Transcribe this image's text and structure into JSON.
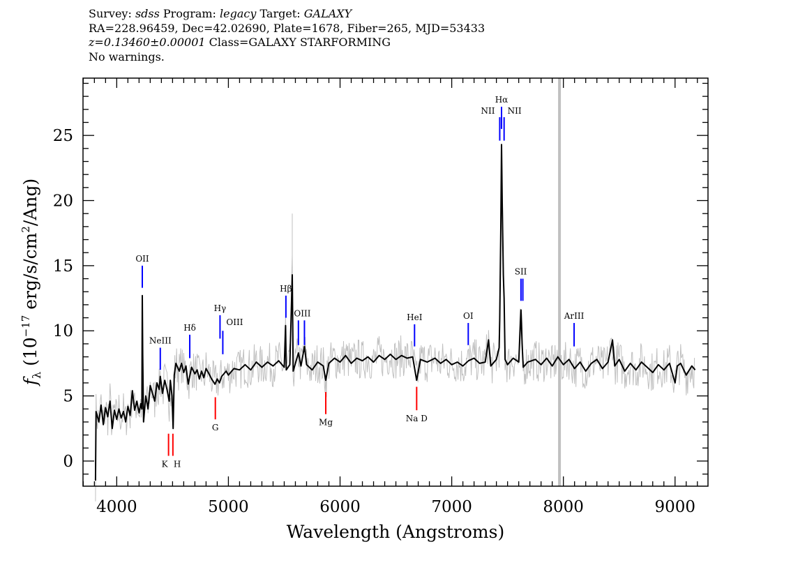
{
  "header": {
    "line1": {
      "survey_label": "Survey: ",
      "survey": "sdss",
      "program_label": " Program: ",
      "program": "legacy",
      "target_label": " Target: ",
      "target": "GALAXY"
    },
    "line2": "RA=228.96459, Dec=42.02690, Plate=1678, Fiber=265, MJD=53433",
    "line3": {
      "redshift": "z=0.13460±0.00001",
      "class": " Class=GALAXY STARFORMING"
    },
    "line4": "No warnings."
  },
  "chart_data": {
    "type": "line",
    "xlabel": "Wavelength (Angstroms)",
    "ylabel": {
      "f": "f",
      "sub": "λ",
      "pre": " (10",
      "exp": "−17",
      "mid": " erg/s/cm",
      "exp2": "2",
      "post": "/Ang)"
    },
    "xlim": [
      3698,
      9295
    ],
    "ylim": [
      -1.93,
      29.4
    ],
    "x_ticks": [
      4000,
      5000,
      6000,
      7000,
      8000,
      9000
    ],
    "x_tick_labels": [
      "4000",
      "5000",
      "6000",
      "7000",
      "8000",
      "9000"
    ],
    "y_ticks": [
      0,
      5,
      10,
      15,
      20,
      25
    ],
    "y_tick_labels": [
      "0",
      "5",
      "10",
      "15",
      "20",
      "25"
    ],
    "grid": false,
    "colors": {
      "flux": "#000000",
      "error_band": "#c0c0c0",
      "emission": "#0000ff",
      "absorption": "#ff0000"
    },
    "masked_wavelength": 7965,
    "spectrum": [
      [
        3810,
        -1.5
      ],
      [
        3815,
        3.8
      ],
      [
        3840,
        3.0
      ],
      [
        3860,
        4.3
      ],
      [
        3880,
        2.8
      ],
      [
        3900,
        4.1
      ],
      [
        3920,
        3.4
      ],
      [
        3940,
        4.6
      ],
      [
        3960,
        2.5
      ],
      [
        3980,
        3.9
      ],
      [
        4000,
        3.2
      ],
      [
        4020,
        4.0
      ],
      [
        4040,
        3.3
      ],
      [
        4060,
        3.8
      ],
      [
        4080,
        3.0
      ],
      [
        4100,
        4.2
      ],
      [
        4120,
        3.5
      ],
      [
        4140,
        5.4
      ],
      [
        4160,
        3.9
      ],
      [
        4180,
        4.6
      ],
      [
        4200,
        3.7
      ],
      [
        4215,
        4.4
      ],
      [
        4225,
        4.0
      ],
      [
        4229,
        12.7
      ],
      [
        4233,
        8.2
      ],
      [
        4240,
        3.0
      ],
      [
        4260,
        5.0
      ],
      [
        4280,
        4.0
      ],
      [
        4300,
        5.8
      ],
      [
        4320,
        5.2
      ],
      [
        4340,
        4.6
      ],
      [
        4360,
        6.0
      ],
      [
        4380,
        5.5
      ],
      [
        4390,
        6.5
      ],
      [
        4410,
        5.2
      ],
      [
        4430,
        6.2
      ],
      [
        4450,
        5.5
      ],
      [
        4470,
        4.6
      ],
      [
        4480,
        6.2
      ],
      [
        4495,
        5.0
      ],
      [
        4505,
        2.5
      ],
      [
        4515,
        6.6
      ],
      [
        4530,
        7.5
      ],
      [
        4560,
        6.9
      ],
      [
        4580,
        7.5
      ],
      [
        4600,
        6.8
      ],
      [
        4620,
        7.3
      ],
      [
        4640,
        5.9
      ],
      [
        4654,
        6.5
      ],
      [
        4670,
        7.2
      ],
      [
        4700,
        6.7
      ],
      [
        4720,
        7.0
      ],
      [
        4740,
        6.3
      ],
      [
        4760,
        6.9
      ],
      [
        4780,
        6.4
      ],
      [
        4800,
        7.1
      ],
      [
        4820,
        6.8
      ],
      [
        4850,
        6.3
      ],
      [
        4880,
        5.9
      ],
      [
        4900,
        6.3
      ],
      [
        4920,
        6.0
      ],
      [
        4940,
        6.5
      ],
      [
        4960,
        6.7
      ],
      [
        4980,
        6.9
      ],
      [
        5000,
        6.6
      ],
      [
        5050,
        7.1
      ],
      [
        5100,
        7.0
      ],
      [
        5150,
        7.4
      ],
      [
        5200,
        7.0
      ],
      [
        5250,
        7.6
      ],
      [
        5300,
        7.2
      ],
      [
        5350,
        7.6
      ],
      [
        5400,
        7.3
      ],
      [
        5450,
        7.7
      ],
      [
        5500,
        7.2
      ],
      [
        5512,
        10.4
      ],
      [
        5518,
        7.0
      ],
      [
        5550,
        7.4
      ],
      [
        5572,
        14.3
      ],
      [
        5580,
        6.9
      ],
      [
        5627,
        8.3
      ],
      [
        5650,
        7.3
      ],
      [
        5681,
        8.8
      ],
      [
        5700,
        7.4
      ],
      [
        5750,
        7.0
      ],
      [
        5800,
        7.6
      ],
      [
        5850,
        7.3
      ],
      [
        5872,
        6.2
      ],
      [
        5900,
        7.5
      ],
      [
        5950,
        7.9
      ],
      [
        6000,
        7.6
      ],
      [
        6050,
        8.1
      ],
      [
        6100,
        7.5
      ],
      [
        6150,
        7.9
      ],
      [
        6200,
        7.7
      ],
      [
        6250,
        8.0
      ],
      [
        6300,
        7.6
      ],
      [
        6350,
        8.1
      ],
      [
        6400,
        7.8
      ],
      [
        6450,
        8.2
      ],
      [
        6500,
        7.8
      ],
      [
        6550,
        8.1
      ],
      [
        6600,
        7.9
      ],
      [
        6650,
        8.0
      ],
      [
        6686,
        6.2
      ],
      [
        6720,
        7.8
      ],
      [
        6780,
        7.6
      ],
      [
        6850,
        7.9
      ],
      [
        6900,
        7.5
      ],
      [
        6950,
        7.8
      ],
      [
        7000,
        7.4
      ],
      [
        7050,
        7.6
      ],
      [
        7100,
        7.3
      ],
      [
        7150,
        7.7
      ],
      [
        7200,
        7.9
      ],
      [
        7250,
        7.5
      ],
      [
        7300,
        7.6
      ],
      [
        7330,
        9.3
      ],
      [
        7350,
        7.3
      ],
      [
        7400,
        7.8
      ],
      [
        7425,
        8.7
      ],
      [
        7430,
        10.8
      ],
      [
        7440,
        18.0
      ],
      [
        7446,
        24.3
      ],
      [
        7452,
        19.8
      ],
      [
        7462,
        14.3
      ],
      [
        7469,
        12.5
      ],
      [
        7478,
        7.8
      ],
      [
        7500,
        7.4
      ],
      [
        7550,
        7.9
      ],
      [
        7600,
        7.6
      ],
      [
        7620,
        11.6
      ],
      [
        7630,
        9.0
      ],
      [
        7640,
        7.2
      ],
      [
        7680,
        7.6
      ],
      [
        7750,
        7.8
      ],
      [
        7800,
        7.4
      ],
      [
        7850,
        7.9
      ],
      [
        7900,
        7.3
      ],
      [
        7950,
        8.0
      ],
      [
        8000,
        7.4
      ],
      [
        8050,
        7.8
      ],
      [
        8100,
        7.1
      ],
      [
        8150,
        7.6
      ],
      [
        8200,
        6.9
      ],
      [
        8250,
        7.5
      ],
      [
        8300,
        7.8
      ],
      [
        8350,
        7.1
      ],
      [
        8400,
        7.6
      ],
      [
        8440,
        9.3
      ],
      [
        8460,
        7.3
      ],
      [
        8500,
        7.8
      ],
      [
        8550,
        6.9
      ],
      [
        8600,
        7.5
      ],
      [
        8650,
        7.0
      ],
      [
        8700,
        7.6
      ],
      [
        8750,
        7.2
      ],
      [
        8800,
        6.8
      ],
      [
        8850,
        7.4
      ],
      [
        8900,
        7.0
      ],
      [
        8950,
        7.5
      ],
      [
        9000,
        6.0
      ],
      [
        9020,
        7.3
      ],
      [
        9050,
        7.5
      ],
      [
        9100,
        6.6
      ],
      [
        9150,
        7.3
      ],
      [
        9180,
        7.0
      ]
    ],
    "line_markers": [
      {
        "label": "OII",
        "wavelength": 4229,
        "type": "emission",
        "flux_range": [
          13.3,
          15.0
        ],
        "label_pos": "center"
      },
      {
        "label": "NeIII",
        "wavelength": 4390,
        "type": "emission",
        "flux_range": [
          7.0,
          8.7
        ],
        "label_pos": "center"
      },
      {
        "label": "Hδ",
        "wavelength": 4654,
        "type": "emission",
        "flux_range": [
          7.9,
          9.7
        ],
        "label_pos": "center"
      },
      {
        "label": "Hγ",
        "wavelength": 4925,
        "type": "emission",
        "flux_range": [
          9.4,
          11.2
        ],
        "label_pos": "center"
      },
      {
        "label": "OIII",
        "wavelength": 4950,
        "type": "emission",
        "flux_range": [
          8.2,
          10.0
        ],
        "label_pos": "right"
      },
      {
        "label": "Hβ",
        "wavelength": 5515,
        "type": "emission",
        "flux_range": [
          11.0,
          12.7
        ],
        "label_pos": "center"
      },
      {
        "label": "",
        "wavelength": 5627,
        "type": "emission",
        "flux_range": [
          8.9,
          10.8
        ],
        "label_pos": "center"
      },
      {
        "label": "OIII",
        "wavelength": 5681,
        "type": "emission",
        "flux_range": [
          8.9,
          10.8
        ],
        "label_pos": "center-left"
      },
      {
        "label": "HeI",
        "wavelength": 6667,
        "type": "emission",
        "flux_range": [
          8.8,
          10.5
        ],
        "label_pos": "center"
      },
      {
        "label": "OI",
        "wavelength": 7148,
        "type": "emission",
        "flux_range": [
          8.9,
          10.6
        ],
        "label_pos": "center"
      },
      {
        "label": "NII",
        "wavelength": 7430,
        "type": "emission",
        "flux_range": [
          24.6,
          26.4
        ],
        "label_pos": "left"
      },
      {
        "label": "Hα",
        "wavelength": 7446,
        "type": "emission",
        "flux_range": [
          25.5,
          27.2
        ],
        "label_pos": "center"
      },
      {
        "label": "NII",
        "wavelength": 7469,
        "type": "emission",
        "flux_range": [
          24.6,
          26.4
        ],
        "label_pos": "right"
      },
      {
        "label": "",
        "wavelength": 7620,
        "type": "emission",
        "flux_range": [
          12.3,
          14.0
        ],
        "label_pos": "center"
      },
      {
        "label": "SII",
        "wavelength": 7637,
        "type": "emission",
        "flux_range": [
          12.3,
          14.0
        ],
        "label_pos": "center-left"
      },
      {
        "label": "ArIII",
        "wavelength": 8096,
        "type": "emission",
        "flux_range": [
          8.8,
          10.6
        ],
        "label_pos": "center"
      },
      {
        "label": "K",
        "wavelength": 4464,
        "type": "absorption",
        "flux_range": [
          0.4,
          2.1
        ],
        "label_pos": "below-left"
      },
      {
        "label": "H",
        "wavelength": 4503,
        "type": "absorption",
        "flux_range": [
          0.4,
          2.1
        ],
        "label_pos": "below-right"
      },
      {
        "label": "G",
        "wavelength": 4883,
        "type": "absorption",
        "flux_range": [
          3.2,
          4.9
        ],
        "label_pos": "below"
      },
      {
        "label": "Mg",
        "wavelength": 5872,
        "type": "absorption",
        "flux_range": [
          3.6,
          5.3
        ],
        "label_pos": "below"
      },
      {
        "label": "Na D",
        "wavelength": 6686,
        "type": "absorption",
        "flux_range": [
          3.9,
          5.7
        ],
        "label_pos": "below"
      }
    ]
  }
}
